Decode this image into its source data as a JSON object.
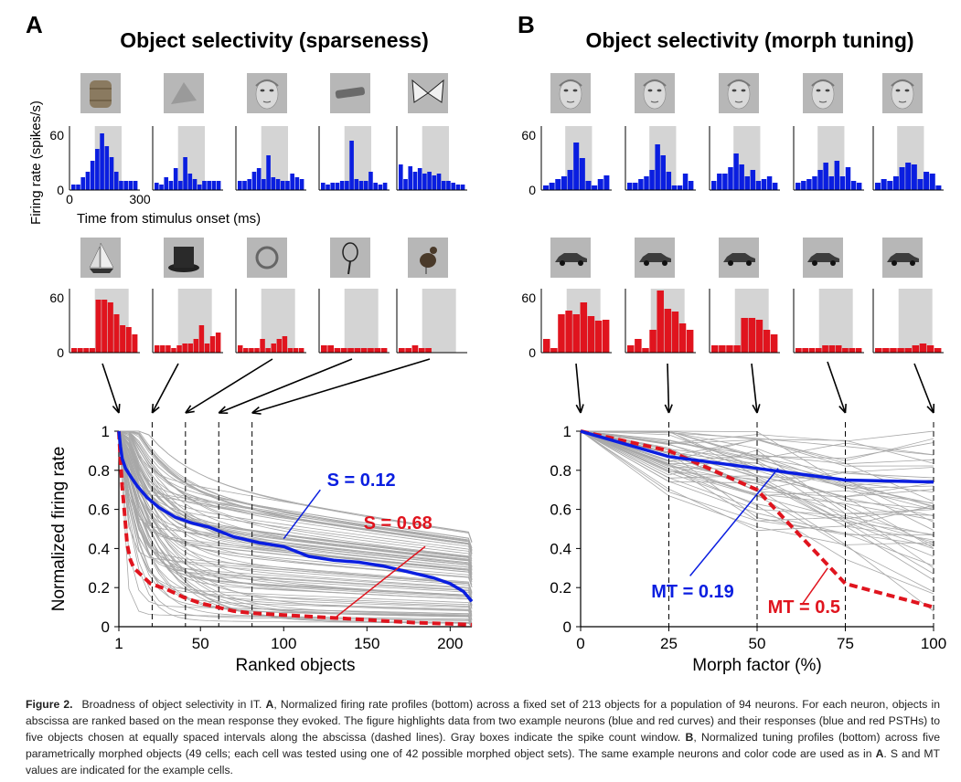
{
  "panelA": {
    "letter": "A",
    "title": "Object selectivity (sparseness)",
    "psth_ylabel": "Firing rate (spikes/s)",
    "psth_xlabel": "Time from stimulus onset (ms)",
    "psth_ytick": "60",
    "psth_yzero": "0",
    "psth_xtick_start": "0",
    "psth_xtick_end": "300",
    "objects_top": [
      "barrel-image",
      "pyramid-image",
      "face-image",
      "tube-image",
      "butterfly-image"
    ],
    "objects_bottom": [
      "sailboat-image",
      "top-hat-image",
      "tuba-image",
      "racket-image",
      "rooster-image"
    ],
    "blue_psth": [
      [
        6,
        6,
        14,
        20,
        32,
        45,
        62,
        48,
        36,
        20,
        10,
        10,
        10,
        10
      ],
      [
        8,
        6,
        14,
        10,
        24,
        10,
        36,
        18,
        12,
        6,
        10,
        10,
        10,
        10
      ],
      [
        10,
        10,
        12,
        20,
        24,
        12,
        38,
        14,
        12,
        10,
        10,
        18,
        14,
        12
      ],
      [
        8,
        6,
        8,
        8,
        10,
        10,
        54,
        12,
        10,
        10,
        20,
        8,
        6,
        8
      ],
      [
        28,
        12,
        26,
        20,
        24,
        18,
        20,
        16,
        18,
        10,
        10,
        8,
        6,
        6
      ]
    ],
    "red_psth": [
      [
        5,
        5,
        5,
        5,
        58,
        58,
        55,
        42,
        30,
        28,
        20
      ],
      [
        8,
        8,
        8,
        5,
        8,
        10,
        10,
        15,
        30,
        10,
        18,
        22
      ],
      [
        8,
        5,
        5,
        5,
        15,
        5,
        10,
        15,
        18,
        5,
        5,
        5
      ],
      [
        8,
        8,
        5,
        5,
        5,
        5,
        5,
        5,
        5,
        5
      ],
      [
        5,
        5,
        8,
        5,
        5,
        0,
        0,
        0,
        0,
        0
      ]
    ]
  },
  "panelB": {
    "letter": "B",
    "title": "Object selectivity (morph tuning)",
    "psth_ytick": "60",
    "psth_yzero": "0",
    "objects_top": [
      "face-morph-1",
      "face-morph-2",
      "face-morph-3",
      "face-morph-4",
      "face-morph-5"
    ],
    "objects_bottom": [
      "car-morph-1",
      "car-morph-2",
      "car-morph-3",
      "car-morph-4",
      "car-morph-5"
    ],
    "blue_psth": [
      [
        5,
        8,
        12,
        15,
        22,
        52,
        35,
        10,
        5,
        12,
        16
      ],
      [
        8,
        8,
        12,
        15,
        22,
        50,
        38,
        20,
        5,
        5,
        18,
        10
      ],
      [
        10,
        18,
        18,
        25,
        40,
        28,
        15,
        22,
        10,
        12,
        15,
        8
      ],
      [
        8,
        10,
        12,
        15,
        22,
        30,
        15,
        32,
        15,
        25,
        10,
        8
      ],
      [
        8,
        12,
        10,
        15,
        25,
        30,
        28,
        12,
        20,
        18,
        5
      ]
    ],
    "red_psth": [
      [
        15,
        5,
        42,
        46,
        42,
        55,
        40,
        35,
        36
      ],
      [
        8,
        15,
        5,
        25,
        68,
        48,
        45,
        32,
        25
      ],
      [
        8,
        8,
        8,
        8,
        38,
        38,
        36,
        25,
        20
      ],
      [
        5,
        5,
        5,
        5,
        8,
        8,
        8,
        5,
        5,
        5
      ],
      [
        5,
        5,
        5,
        5,
        5,
        8,
        10,
        8,
        5
      ]
    ]
  },
  "colors": {
    "blue": "#0a1ee0",
    "red": "#e0141e",
    "gray_curve": "#a8a8a8",
    "window": "#d4d4d4"
  },
  "chart_data": [
    {
      "type": "line",
      "panel": "A",
      "xlabel": "Ranked objects",
      "ylabel": "Normalized firing rate",
      "xlim": [
        1,
        213
      ],
      "ylim": [
        0,
        1
      ],
      "xticks": [
        "1",
        "50",
        "100",
        "150",
        "200"
      ],
      "xtick_values": [
        1,
        50,
        100,
        150,
        200
      ],
      "yticks": [
        "0",
        "0.2",
        "0.4",
        "0.6",
        "0.8",
        "1"
      ],
      "ytick_values": [
        0,
        0.2,
        0.4,
        0.6,
        0.8,
        1
      ],
      "dashed_lines_x": [
        21,
        41,
        61,
        81
      ],
      "population_cells": 94,
      "series": [
        {
          "label": "S = 0.12",
          "color": "blue",
          "x": [
            1,
            2,
            3,
            5,
            8,
            12,
            18,
            25,
            35,
            45,
            55,
            70,
            85,
            100,
            115,
            130,
            145,
            160,
            175,
            190,
            200,
            208,
            213
          ],
          "y": [
            1.0,
            0.92,
            0.86,
            0.81,
            0.77,
            0.72,
            0.66,
            0.61,
            0.56,
            0.53,
            0.51,
            0.46,
            0.43,
            0.41,
            0.36,
            0.34,
            0.33,
            0.31,
            0.28,
            0.25,
            0.22,
            0.18,
            0.13
          ]
        },
        {
          "label": "S = 0.68",
          "color": "red",
          "x": [
            1,
            2,
            3,
            4,
            5,
            6,
            8,
            10,
            15,
            20,
            30,
            40,
            50,
            60,
            70,
            80,
            100,
            120,
            140,
            160,
            180,
            200,
            213
          ],
          "y": [
            1.0,
            0.85,
            0.72,
            0.62,
            0.52,
            0.42,
            0.34,
            0.3,
            0.26,
            0.22,
            0.19,
            0.15,
            0.12,
            0.1,
            0.08,
            0.07,
            0.06,
            0.05,
            0.04,
            0.03,
            0.02,
            0.015,
            0.01
          ]
        }
      ]
    },
    {
      "type": "line",
      "panel": "B",
      "xlabel": "Morph factor (%)",
      "ylabel": "",
      "xlim": [
        0,
        100
      ],
      "ylim": [
        0,
        1
      ],
      "xticks": [
        "0",
        "25",
        "50",
        "75",
        "100"
      ],
      "xtick_values": [
        0,
        25,
        50,
        75,
        100
      ],
      "yticks": [
        "0",
        "0.2",
        "0.4",
        "0.6",
        "0.8",
        "1"
      ],
      "ytick_values": [
        0,
        0.2,
        0.4,
        0.6,
        0.8,
        1
      ],
      "dashed_lines_x": [
        25,
        50,
        75,
        100
      ],
      "population_cells": 49,
      "series": [
        {
          "label": "MT = 0.19",
          "color": "blue",
          "x": [
            0,
            25,
            50,
            75,
            100
          ],
          "y": [
            1.0,
            0.87,
            0.81,
            0.75,
            0.74
          ]
        },
        {
          "label": "MT = 0.5",
          "color": "red",
          "x": [
            0,
            25,
            50,
            75,
            100
          ],
          "y": [
            1.0,
            0.9,
            0.7,
            0.22,
            0.1
          ]
        }
      ]
    }
  ],
  "caption": {
    "label": "Figure 2.",
    "parts": [
      {
        "t": "Broadness of object selectivity in IT. ",
        "b": false
      },
      {
        "t": "A",
        "b": true
      },
      {
        "t": ", Normalized firing rate profiles (bottom) across a fixed set of 213 objects for a population of 94 neurons. For each neuron, objects in abscissa are ranked based on the mean response they evoked. The figure highlights data from two example neurons (blue and red curves) and their responses (blue and red PSTHs) to five objects chosen at equally spaced intervals along the abscissa (dashed lines). Gray boxes indicate the spike count window. ",
        "b": false
      },
      {
        "t": "B",
        "b": true
      },
      {
        "t": ", Normalized tuning profiles (bottom) across five parametrically morphed objects (49 cells; each cell was tested using one of 42 possible morphed object sets). The same example neurons and color code are used as in ",
        "b": false
      },
      {
        "t": "A",
        "b": true
      },
      {
        "t": ". S and MT values are indicated for the example cells.",
        "b": false
      }
    ]
  }
}
